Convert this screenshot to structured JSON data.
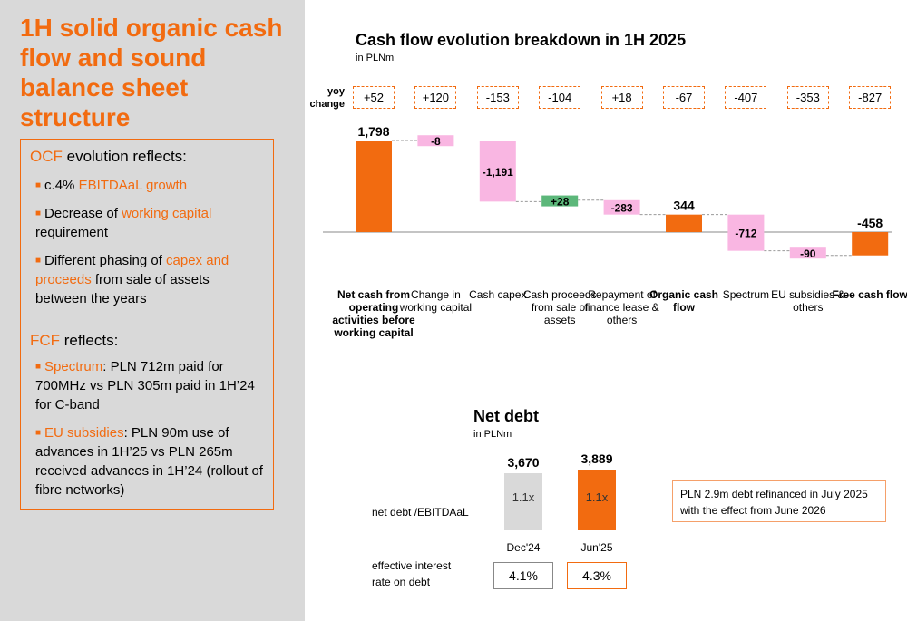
{
  "sidebar": {
    "title": "1H solid organic cash flow and sound balance sheet structure",
    "ocf": {
      "heading_highlight": "OCF",
      "heading_rest": " evolution reflects:",
      "bullets": [
        {
          "pre": "c.4% ",
          "hl": "EBITDAaL growth",
          "post": ""
        },
        {
          "pre": "Decrease of ",
          "hl": "working capital",
          "post": "\nrequirement"
        },
        {
          "pre": "Different phasing of ",
          "hl": "capex and\nproceeds",
          "post": " from sale of assets\nbetween the years"
        }
      ]
    },
    "fcf": {
      "heading_highlight": "FCF",
      "heading_rest": " reflects:",
      "bullets": [
        {
          "pre": "",
          "hl": "Spectrum",
          "post": ": PLN 712m paid for\n700MHz vs PLN 305m paid in 1H’24\nfor C-band"
        },
        {
          "pre": "",
          "hl": "EU subsidies",
          "post": ": PLN 90m use of\nadvances in 1H’25 vs PLN 265m\nreceived advances in 1H’24 (rollout of\nfibre networks)"
        }
      ]
    }
  },
  "colors": {
    "accent": "#f26b10",
    "pink": "#f9b6e2",
    "green": "#5cb77a",
    "grey_bar": "#d9d9d9",
    "sidebar_bg": "#d9d9d9"
  },
  "chart_data": [
    {
      "type": "waterfall",
      "title": "Cash flow evolution breakdown in 1H 2025",
      "unit": "in PLNm",
      "yoy_label": "yoy\nchange",
      "categories": [
        "Net cash from operating activities before working capital",
        "Change in working capital",
        "Cash capex",
        "Cash proceeds from sale of assets",
        "Repayment of finance lease & others",
        "Organic cash flow",
        "Spectrum",
        "EU subsidies & others",
        "Free cash flow"
      ],
      "bold_categories": [
        0,
        5,
        8
      ],
      "values": [
        1798,
        -8,
        -1191,
        28,
        -283,
        344,
        -712,
        -90,
        -458
      ],
      "value_labels": [
        "1,798",
        "-8",
        "-1,191",
        "+28",
        "-283",
        "344",
        "-712",
        "-90",
        "-458"
      ],
      "kinds": [
        "total",
        "delta",
        "delta",
        "delta",
        "delta",
        "total",
        "delta",
        "delta",
        "total"
      ],
      "yoy_change": [
        "+52",
        "+120",
        "-153",
        "-104",
        "+18",
        "-67",
        "-407",
        "-353",
        "-827"
      ]
    },
    {
      "type": "bar",
      "title": "Net debt",
      "unit": "in PLNm",
      "categories": [
        "Dec'24",
        "Jun'25"
      ],
      "values": [
        3670,
        3889
      ],
      "value_labels": [
        "3,670",
        "3,889"
      ],
      "net_debt_label": "net debt /EBITDAaL",
      "net_debt_ebitdaal": [
        "1.1x",
        "1.1x"
      ],
      "rate_label": "effective interest\nrate on debt",
      "effective_interest_rate": [
        "4.1%",
        "4.3%"
      ]
    }
  ],
  "note": "PLN 2.9m debt refinanced in July 2025 with the effect from June 2026"
}
